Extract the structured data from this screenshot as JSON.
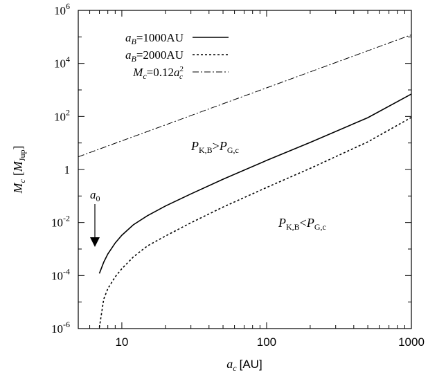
{
  "chart_data": {
    "type": "line",
    "x_scale": "log",
    "y_scale": "log",
    "xlim": [
      5,
      1000
    ],
    "ylim": [
      1e-06,
      1000000
    ],
    "xlabel": {
      "var": "a",
      "sub": "c",
      "unit": "[AU]"
    },
    "ylabel": {
      "var": "M",
      "sub": "c",
      "unit_open": "[",
      "unit_var": "M",
      "unit_sub": "Jup",
      "unit_close": "]"
    },
    "x_ticks": [
      {
        "value": 10,
        "label": "10"
      },
      {
        "value": 100,
        "label": "100"
      },
      {
        "value": 1000,
        "label": "1000"
      }
    ],
    "y_ticks": [
      {
        "value": 1000000,
        "base": "10",
        "exp": "6"
      },
      {
        "value": 10000,
        "base": "10",
        "exp": "4"
      },
      {
        "value": 100,
        "base": "10",
        "exp": "2"
      },
      {
        "value": 1,
        "base": "1",
        "exp": ""
      },
      {
        "value": 0.01,
        "base": "10",
        "exp": "-2"
      },
      {
        "value": 0.0001,
        "base": "10",
        "exp": "-4"
      },
      {
        "value": 1e-06,
        "base": "10",
        "exp": "-6"
      }
    ],
    "grid": false,
    "legend_position": "top-left",
    "series": [
      {
        "legend": {
          "v": "a",
          "s": "B",
          "rest": "=1000AU"
        },
        "style": "solid",
        "x": [
          7,
          7.5,
          8,
          9,
          10,
          12,
          15,
          20,
          30,
          50,
          100,
          200,
          500,
          1000
        ],
        "y": [
          0.00012,
          0.00032,
          0.00065,
          0.0017,
          0.0033,
          0.0082,
          0.018,
          0.042,
          0.12,
          0.43,
          2.2,
          10.5,
          90,
          700
        ]
      },
      {
        "legend": {
          "v": "a",
          "s": "B",
          "rest": "=2000AU"
        },
        "style": "dotted",
        "x": [
          7,
          7.5,
          8,
          9,
          10,
          12,
          15,
          20,
          30,
          50,
          100,
          200,
          500,
          1000
        ],
        "y": [
          1.1e-06,
          1.3e-05,
          3.2e-05,
          9e-05,
          0.00018,
          0.0005,
          0.0013,
          0.0031,
          0.0098,
          0.038,
          0.21,
          1.1,
          11,
          92
        ]
      },
      {
        "legend": {
          "v": "M",
          "s": "c",
          "rest": "=0.12",
          "v2": "a",
          "s2": "c",
          "sup2": "2"
        },
        "style": "dashdot",
        "x": [
          5,
          10,
          20,
          50,
          100,
          200,
          500,
          1000
        ],
        "y": [
          3,
          12,
          48,
          300,
          1200,
          4800,
          30000,
          120000
        ]
      }
    ],
    "annotations": [
      {
        "id": "upper",
        "v": "P",
        "s": "K,B",
        "op": ">",
        "v2": "P",
        "s2": "G,c",
        "x": 55,
        "y": 10
      },
      {
        "id": "lower",
        "v": "P",
        "s": "K,B",
        "op": "<",
        "v2": "P",
        "s2": "G,c",
        "x": 170,
        "y": 0.01
      },
      {
        "id": "a0",
        "v": "a",
        "s": "0",
        "x": 6.3,
        "y": 0.1,
        "arrow_to_y": 0.0004
      }
    ]
  }
}
